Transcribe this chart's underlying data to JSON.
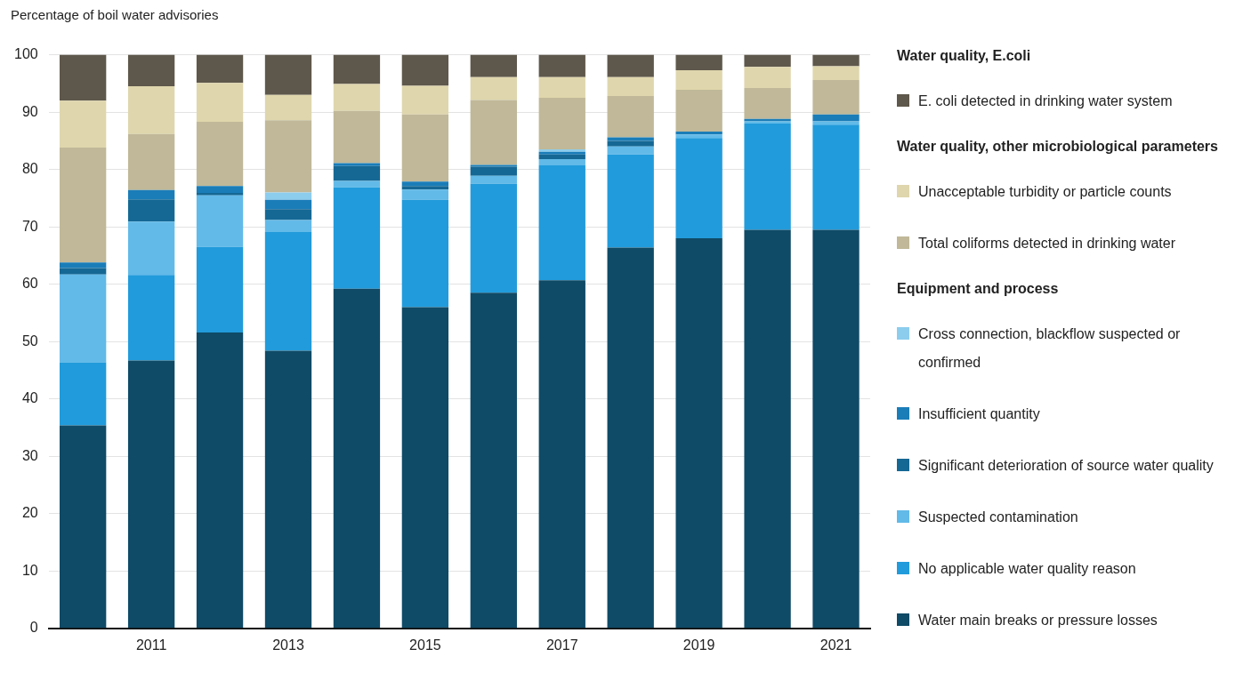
{
  "chart_data": {
    "type": "bar",
    "stacked": true,
    "ylabel": "Percentage of boil water advisories",
    "categories": [
      null,
      "2011",
      null,
      "2013",
      null,
      "2015",
      null,
      "2017",
      null,
      "2019",
      null,
      "2021"
    ],
    "series": [
      {
        "name": "Water main breaks or pressure losses",
        "color": "#0f4a66",
        "values": [
          35.4,
          46.7,
          51.6,
          48.4,
          59.2,
          56.0,
          58.5,
          60.7,
          66.4,
          68.0,
          69.5,
          69.5
        ]
      },
      {
        "name": "No applicable water quality reason",
        "color": "#219bdb",
        "values": [
          11.0,
          14.9,
          14.9,
          20.7,
          17.7,
          18.7,
          19.0,
          20.0,
          16.2,
          17.5,
          18.5,
          18.3
        ]
      },
      {
        "name": "Suspected contamination",
        "color": "#62bae8",
        "values": [
          15.3,
          9.3,
          9.0,
          2.1,
          1.1,
          1.8,
          1.4,
          1.1,
          1.4,
          0.6,
          0.4,
          0.6
        ]
      },
      {
        "name": "Significant deterioration of source water quality",
        "color": "#156894",
        "values": [
          1.1,
          3.9,
          0.4,
          1.9,
          2.6,
          0.6,
          1.6,
          0.8,
          1.0,
          0,
          0,
          0
        ]
      },
      {
        "name": "Insufficient quantity",
        "color": "#1a7db8",
        "values": [
          1.0,
          1.6,
          1.2,
          1.6,
          0.5,
          0.8,
          0.3,
          0.5,
          0.6,
          0.5,
          0.4,
          1.2
        ]
      },
      {
        "name": "Cross connection, blackflow suspected or confirmed",
        "color": "#8ccdee",
        "values": [
          0,
          0,
          0,
          1.3,
          0,
          0,
          0,
          0.4,
          0,
          0,
          0,
          0
        ]
      },
      {
        "name": "Total coliforms detected in drinking water",
        "color": "#c0b898",
        "values": [
          20.0,
          9.8,
          11.2,
          12.6,
          9.1,
          11.7,
          11.3,
          9.0,
          7.2,
          7.3,
          5.4,
          6.0
        ]
      },
      {
        "name": "Unacceptable turbidity or particle counts",
        "color": "#dfd6ad",
        "values": [
          8.2,
          8.3,
          6.8,
          4.4,
          4.7,
          5.0,
          4.0,
          3.6,
          3.3,
          3.4,
          3.7,
          2.4
        ]
      },
      {
        "name": "E. coli detected in drinking water system",
        "color": "#5e574b",
        "values": [
          8.0,
          5.5,
          4.9,
          7.0,
          5.1,
          5.4,
          3.9,
          3.9,
          3.9,
          2.7,
          2.1,
          2.0
        ]
      }
    ],
    "ylim": [
      0,
      100
    ],
    "yticks": [
      0,
      10,
      20,
      30,
      40,
      50,
      60,
      70,
      80,
      90,
      100
    ],
    "grid": "y",
    "legend": "right",
    "annotations": [
      "Water quality, E.coli",
      "Water quality, other microbiological parameters",
      "Equipment and process"
    ]
  }
}
